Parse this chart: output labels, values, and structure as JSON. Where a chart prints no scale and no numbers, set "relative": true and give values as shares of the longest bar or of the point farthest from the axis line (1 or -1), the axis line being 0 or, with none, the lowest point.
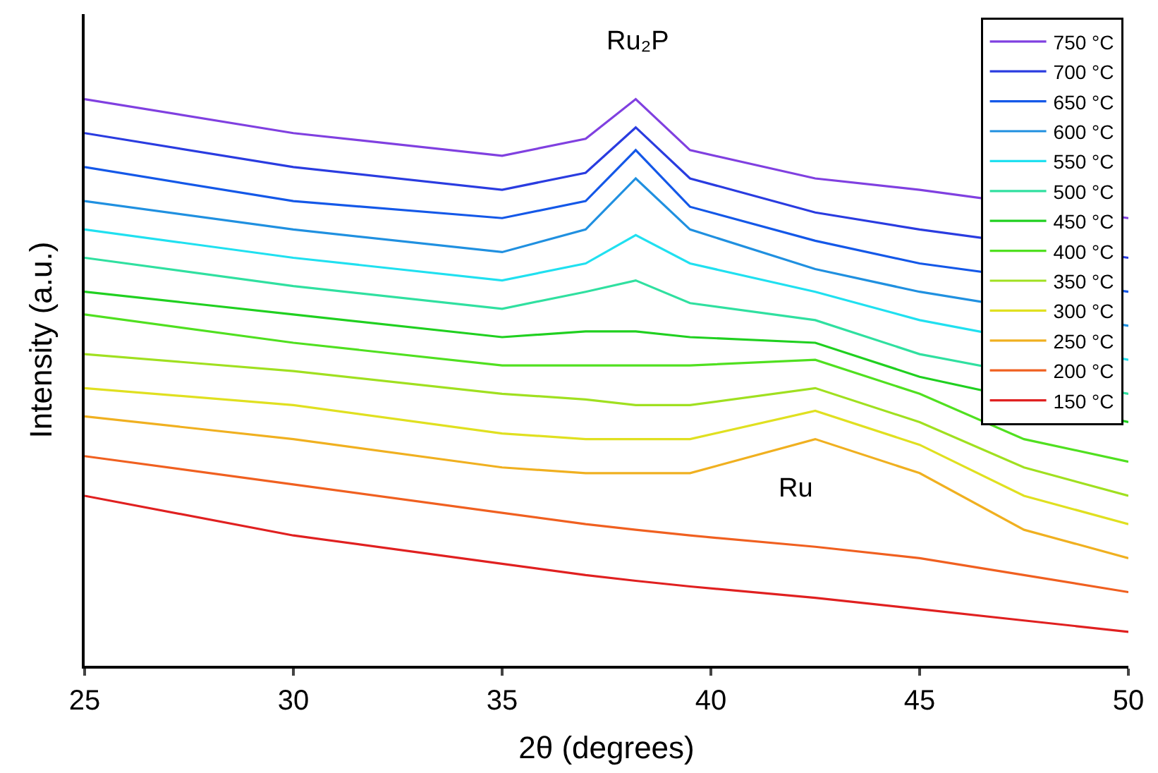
{
  "chart_data": {
    "type": "line",
    "relative": true,
    "xlabel": "2θ (degrees)",
    "ylabel": "Intensity (a.u.)",
    "x": [
      25,
      30,
      35,
      37,
      38.2,
      39.5,
      42.5,
      45,
      47.5,
      50
    ],
    "xlim": [
      25,
      50
    ],
    "xticks": [
      25,
      30,
      35,
      40,
      45,
      50
    ],
    "legend": "top right",
    "marker": "none",
    "line_style": "solid",
    "annotations": [
      "Ru₂P",
      "Ru"
    ],
    "series": [
      {
        "name": "750 °C",
        "color": "#8040e0",
        "x": [
          25,
          30,
          35,
          37,
          38.2,
          39.5,
          42.5,
          45,
          50
        ],
        "values": [
          1.0,
          0.94,
          0.9,
          0.93,
          1.0,
          0.91,
          0.86,
          0.84,
          0.79
        ]
      },
      {
        "name": "700 °C",
        "color": "#2a3ce0",
        "x": [
          25,
          30,
          35,
          37,
          38.2,
          39.5,
          42.5,
          45,
          50
        ],
        "values": [
          0.94,
          0.88,
          0.84,
          0.87,
          0.95,
          0.86,
          0.8,
          0.77,
          0.72
        ]
      },
      {
        "name": "650 °C",
        "color": "#1458e8",
        "x": [
          25,
          30,
          35,
          37,
          38.2,
          39.5,
          42.5,
          45,
          50
        ],
        "values": [
          0.88,
          0.82,
          0.79,
          0.82,
          0.91,
          0.81,
          0.75,
          0.71,
          0.66
        ]
      },
      {
        "name": "600 °C",
        "color": "#2090e0",
        "x": [
          25,
          30,
          35,
          37,
          38.2,
          39.5,
          42.5,
          45,
          50
        ],
        "values": [
          0.82,
          0.77,
          0.73,
          0.77,
          0.86,
          0.77,
          0.7,
          0.66,
          0.6
        ]
      },
      {
        "name": "550 °C",
        "color": "#20e0f0",
        "x": [
          25,
          30,
          35,
          37,
          38.2,
          39.5,
          42.5,
          45,
          50
        ],
        "values": [
          0.77,
          0.72,
          0.68,
          0.71,
          0.76,
          0.71,
          0.66,
          0.61,
          0.54
        ]
      },
      {
        "name": "500 °C",
        "color": "#30e0a0",
        "x": [
          25,
          30,
          35,
          37,
          38.2,
          39.5,
          42.5,
          45,
          50
        ],
        "values": [
          0.72,
          0.67,
          0.63,
          0.66,
          0.68,
          0.64,
          0.61,
          0.55,
          0.48
        ]
      },
      {
        "name": "450 °C",
        "color": "#20d020",
        "x": [
          25,
          30,
          35,
          37,
          38.2,
          39.5,
          42.5,
          45,
          50
        ],
        "values": [
          0.66,
          0.62,
          0.58,
          0.59,
          0.59,
          0.58,
          0.57,
          0.51,
          0.43
        ]
      },
      {
        "name": "400 °C",
        "color": "#50e020",
        "values": [
          0.62,
          0.57,
          0.53,
          0.53,
          0.53,
          0.53,
          0.54,
          0.48,
          0.4,
          0.36
        ]
      },
      {
        "name": "350 °C",
        "color": "#a0e020",
        "values": [
          0.55,
          0.52,
          0.48,
          0.47,
          0.46,
          0.46,
          0.49,
          0.43,
          0.35,
          0.3
        ]
      },
      {
        "name": "300 °C",
        "color": "#e0e020",
        "values": [
          0.49,
          0.46,
          0.41,
          0.4,
          0.4,
          0.4,
          0.45,
          0.39,
          0.3,
          0.25
        ]
      },
      {
        "name": "250 °C",
        "color": "#f0b020",
        "values": [
          0.44,
          0.4,
          0.35,
          0.34,
          0.34,
          0.34,
          0.4,
          0.34,
          0.24,
          0.19
        ]
      },
      {
        "name": "200 °C",
        "color": "#f06020",
        "values": [
          0.37,
          0.32,
          0.27,
          0.25,
          0.24,
          0.23,
          0.21,
          0.19,
          0.16,
          0.13
        ]
      },
      {
        "name": "150 °C",
        "color": "#e02020",
        "values": [
          0.3,
          0.23,
          0.18,
          0.16,
          0.15,
          0.14,
          0.12,
          0.1,
          0.08,
          0.06
        ]
      }
    ]
  }
}
